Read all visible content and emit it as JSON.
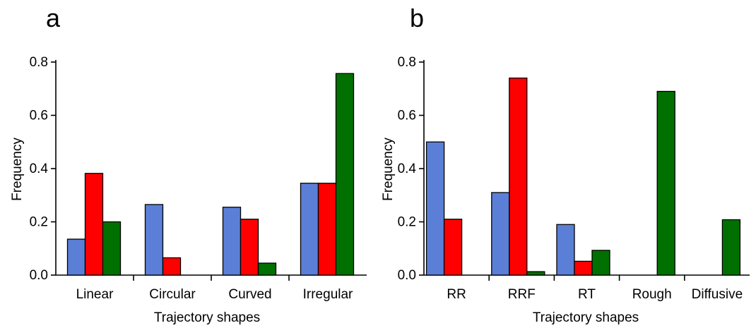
{
  "colors": [
    "#5b7fd6",
    "#ff0000",
    "#007000"
  ],
  "chart_data": [
    {
      "panel_label": "a",
      "type": "bar",
      "categories": [
        "Linear",
        "Circular",
        "Curved",
        "Irregular"
      ],
      "series": [
        {
          "values": [
            0.135,
            0.265,
            0.255,
            0.345
          ]
        },
        {
          "values": [
            0.382,
            0.065,
            0.21,
            0.345
          ]
        },
        {
          "values": [
            0.2,
            0.0,
            0.045,
            0.757
          ]
        }
      ],
      "yticks": [
        "0.0",
        "0.2",
        "0.4",
        "0.6",
        "0.8"
      ],
      "ylim": [
        0,
        0.8
      ],
      "xlabel": "Trajectory shapes",
      "ylabel": "Frequency",
      "grid": false,
      "legend": "none"
    },
    {
      "panel_label": "b",
      "type": "bar",
      "categories": [
        "RR",
        "RRF",
        "RT",
        "Rough",
        "Diffusive"
      ],
      "series": [
        {
          "values": [
            0.5,
            0.31,
            0.19,
            0.0,
            0.0
          ]
        },
        {
          "values": [
            0.21,
            0.74,
            0.052,
            0.0,
            0.0
          ]
        },
        {
          "values": [
            0.0,
            0.013,
            0.093,
            0.69,
            0.208
          ]
        }
      ],
      "yticks": [
        "0.0",
        "0.2",
        "0.4",
        "0.6",
        "0.8"
      ],
      "ylim": [
        0,
        0.8
      ],
      "xlabel": "Trajectory shapes",
      "ylabel": "Frequency",
      "grid": false,
      "legend": "none"
    }
  ]
}
